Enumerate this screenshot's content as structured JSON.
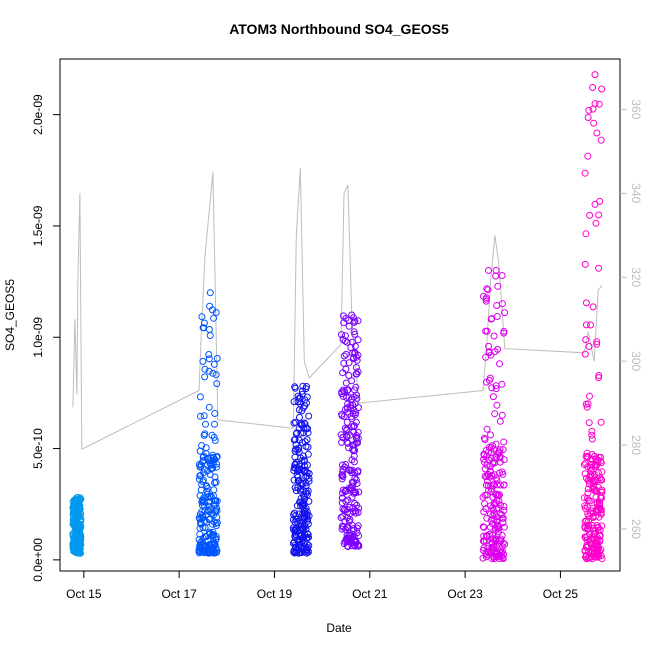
{
  "chart_data": {
    "type": "scatter",
    "title": "ATOM3 Northbound SO4_GEOS5",
    "xlabel": "Date",
    "ylabel": "SO4_GEOS5",
    "xlim": [
      "2017-10-14T12:00",
      "2017-10-26T06:00"
    ],
    "ylim": [
      -5e-11,
      2.25e-09
    ],
    "y2lim": [
      250,
      372
    ],
    "x_ticks": [
      {
        "date": "2017-10-15",
        "label": "Oct 15"
      },
      {
        "date": "2017-10-17",
        "label": "Oct 17"
      },
      {
        "date": "2017-10-19",
        "label": "Oct 19"
      },
      {
        "date": "2017-10-21",
        "label": "Oct 21"
      },
      {
        "date": "2017-10-23",
        "label": "Oct 23"
      },
      {
        "date": "2017-10-25",
        "label": "Oct 25"
      }
    ],
    "y_ticks": [
      {
        "value": 0,
        "label": "0.0e+00"
      },
      {
        "value": 5e-10,
        "label": "5.0e-10"
      },
      {
        "value": 1e-09,
        "label": "1.0e-09"
      },
      {
        "value": 1.5e-09,
        "label": "1.5e-09"
      },
      {
        "value": 2e-09,
        "label": "2.0e-09"
      }
    ],
    "y2_ticks": [
      {
        "value": 260,
        "label": "260"
      },
      {
        "value": 280,
        "label": "280"
      },
      {
        "value": 300,
        "label": "300"
      },
      {
        "value": 320,
        "label": "320"
      },
      {
        "value": 340,
        "label": "340"
      },
      {
        "value": 360,
        "label": "360"
      }
    ],
    "grid": false,
    "legend": "none",
    "series": [
      {
        "color": "#0099ee",
        "x_start": "2017-10-14T18:30",
        "x_end": "2017-10-14T22:30",
        "y_typical": [
          3e-11,
          2.4e-10
        ],
        "y_max": 2.8e-10
      },
      {
        "color": "#0055ff",
        "x_start": "2017-10-17T10:00",
        "x_end": "2017-10-17T19:30",
        "y_typical": [
          3e-11,
          4.8e-10
        ],
        "y_max": 1.2e-09
      },
      {
        "color": "#1111ee",
        "x_start": "2017-10-19T09:30",
        "x_end": "2017-10-19T17:30",
        "y_typical": [
          3e-11,
          5.2e-10
        ],
        "y_max": 7.8e-10
      },
      {
        "color": "#7a00ff",
        "x_start": "2017-10-20T09:30",
        "x_end": "2017-10-20T18:30",
        "y_typical": [
          6e-11,
          7e-10
        ],
        "y_max": 1.1e-09
      },
      {
        "color": "#dd00ee",
        "x_start": "2017-10-23T09:00",
        "x_end": "2017-10-23T20:00",
        "y_typical": [
          5e-12,
          5e-10
        ],
        "y_max": 1.3e-09
      },
      {
        "color": "#ff00cc",
        "x_start": "2017-10-25T12:00",
        "x_end": "2017-10-25T21:00",
        "y_typical": [
          5e-12,
          4.8e-10
        ],
        "y_max": 2.18e-09
      }
    ],
    "secondary_line": {
      "color": "#bdbdbd",
      "points": [
        [
          "2017-10-14T18:30",
          289
        ],
        [
          "2017-10-14T19:30",
          310
        ],
        [
          "2017-10-14T20:30",
          292
        ],
        [
          "2017-10-14T21:00",
          320
        ],
        [
          "2017-10-14T22:00",
          340
        ],
        [
          "2017-10-14T23:00",
          279
        ],
        [
          "2017-10-17T10:00",
          293
        ],
        [
          "2017-10-17T11:00",
          305
        ],
        [
          "2017-10-17T13:00",
          325
        ],
        [
          "2017-10-17T15:00",
          335
        ],
        [
          "2017-10-17T17:00",
          345
        ],
        [
          "2017-10-17T19:30",
          286
        ],
        [
          "2017-10-19T09:30",
          284
        ],
        [
          "2017-10-19T11:00",
          330
        ],
        [
          "2017-10-19T13:00",
          346
        ],
        [
          "2017-10-19T15:00",
          300
        ],
        [
          "2017-10-19T17:30",
          296
        ],
        [
          "2017-10-20T09:30",
          304
        ],
        [
          "2017-10-20T11:00",
          340
        ],
        [
          "2017-10-20T13:00",
          342
        ],
        [
          "2017-10-20T15:00",
          310
        ],
        [
          "2017-10-20T18:30",
          290
        ],
        [
          "2017-10-23T09:00",
          293
        ],
        [
          "2017-10-23T11:00",
          305
        ],
        [
          "2017-10-23T13:00",
          320
        ],
        [
          "2017-10-23T15:00",
          330
        ],
        [
          "2017-10-23T17:00",
          323
        ],
        [
          "2017-10-23T20:00",
          303
        ],
        [
          "2017-10-25T12:00",
          302
        ],
        [
          "2017-10-25T14:00",
          307
        ],
        [
          "2017-10-25T17:00",
          300
        ],
        [
          "2017-10-25T19:00",
          317
        ],
        [
          "2017-10-25T21:00",
          318
        ]
      ]
    }
  }
}
